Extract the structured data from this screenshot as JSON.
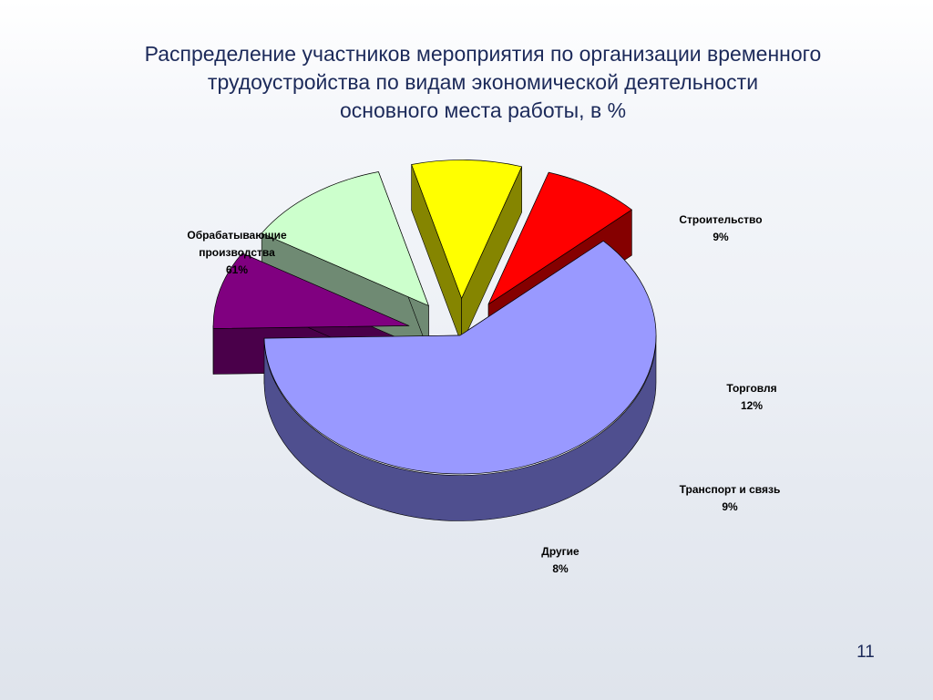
{
  "slide": {
    "title_lines": [
      "Распределение участников мероприятия по  организации временного",
      "трудоустройства по видам экономической деятельности",
      "основного места работы, в %"
    ],
    "page_number": "11"
  },
  "chart_data": {
    "type": "pie",
    "title": "Распределение участников мероприятия по  организации временного трудоустройства по видам экономической деятельности основного места работы, в %",
    "three_d": true,
    "exploded": true,
    "unit": "%",
    "slices": [
      {
        "name_lines": [
          "Обрабатывающие",
          "производства"
        ],
        "value": 61,
        "value_label": "61%",
        "color": "#9999ff",
        "side_color": "#4f4f8f"
      },
      {
        "name_lines": [
          "Строительство"
        ],
        "value": 9,
        "value_label": "9%",
        "color": "#800080",
        "side_color": "#4a004a"
      },
      {
        "name_lines": [
          "Торговля"
        ],
        "value": 12,
        "value_label": "12%",
        "color": "#ccffcc",
        "side_color": "#6f8a73"
      },
      {
        "name_lines": [
          "Транспорт и связь"
        ],
        "value": 9,
        "value_label": "9%",
        "color": "#ffff00",
        "side_color": "#858500"
      },
      {
        "name_lines": [
          "Другие"
        ],
        "value": 8,
        "value_label": "8%",
        "color": "#ff0000",
        "side_color": "#850000"
      }
    ]
  }
}
